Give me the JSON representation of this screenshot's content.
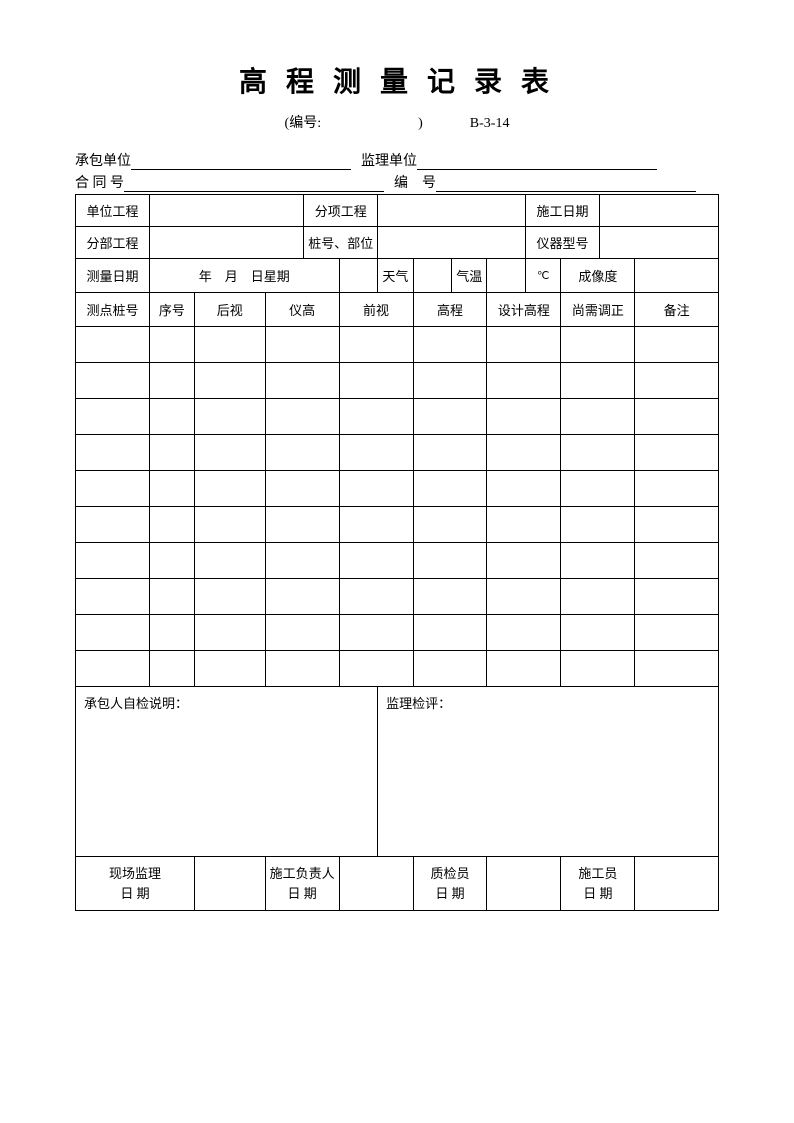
{
  "title": "高 程 测 量 记 录 表",
  "subtitle": {
    "prefix": "(编号:",
    "suffix": ")",
    "code": "B-3-14"
  },
  "meta": {
    "contractor_label": "承包单位",
    "supervisor_label": "监理单位",
    "contract_no_label": "合 同 号",
    "doc_no_label": "编　号"
  },
  "header1": {
    "unit_project": "单位工程",
    "sub_item": "分项工程",
    "construction_date": "施工日期"
  },
  "header2": {
    "division_project": "分部工程",
    "pile_position": "桩号、部位",
    "instrument_model": "仪器型号"
  },
  "header3": {
    "measure_date": "测量日期",
    "date_fmt": "年　月　日星期",
    "weather": "天气",
    "temperature": "气温",
    "temp_unit": "℃",
    "imaging": "成像度"
  },
  "columns": {
    "c1": "测点桩号",
    "c2": "序号",
    "c3": "后视",
    "c4": "仪高",
    "c5": "前视",
    "c6": "高程",
    "c7": "设计高程",
    "c8": "尚需调正",
    "c9": "备注"
  },
  "comment": {
    "self_check": "承包人自检说明：",
    "supervision_review": "监理检评："
  },
  "signatures": {
    "site_supervisor": "现场监理",
    "construction_leader": "施工负责人",
    "quality_inspector": "质检员",
    "constructor": "施工员",
    "date": "日 期"
  },
  "data_row_count": 10
}
